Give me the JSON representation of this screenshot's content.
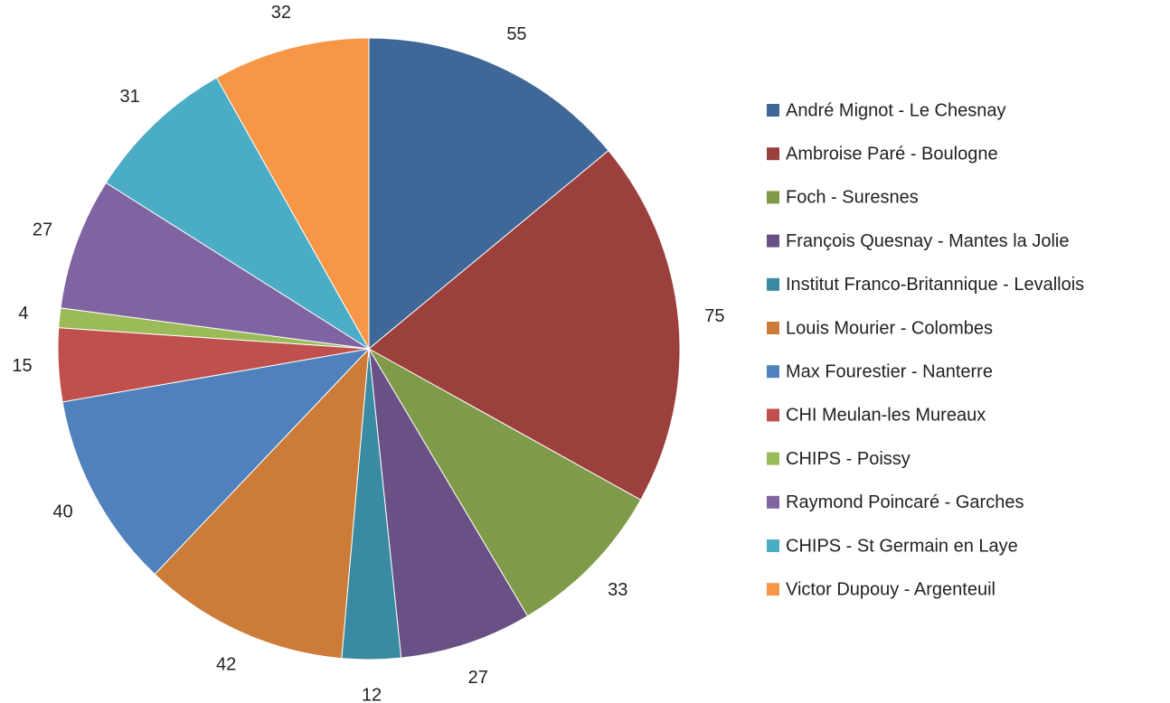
{
  "chart_data": {
    "type": "pie",
    "categories": [
      "André Mignot - Le Chesnay",
      "Ambroise Paré - Boulogne",
      "Foch - Suresnes",
      "François Quesnay - Mantes la Jolie",
      "Institut Franco-Britannique - Levallois",
      "Louis Mourier - Colombes",
      "Max Fourestier - Nanterre",
      "CHI Meulan-les Mureaux",
      "CHIPS - Poissy",
      "Raymond Poincaré - Garches",
      "CHIPS - St Germain en Laye",
      "Victor Dupouy - Argenteuil"
    ],
    "values": [
      55,
      75,
      33,
      27,
      12,
      42,
      40,
      15,
      4,
      27,
      31,
      32
    ],
    "colors": [
      "#3F6899",
      "#9C403D",
      "#7F9A48",
      "#695185",
      "#3A8BA1",
      "#CC7B38",
      "#4F81BD",
      "#C0504D",
      "#9BBB59",
      "#8064A2",
      "#4BACC6",
      "#F79646"
    ],
    "legend": "right"
  }
}
